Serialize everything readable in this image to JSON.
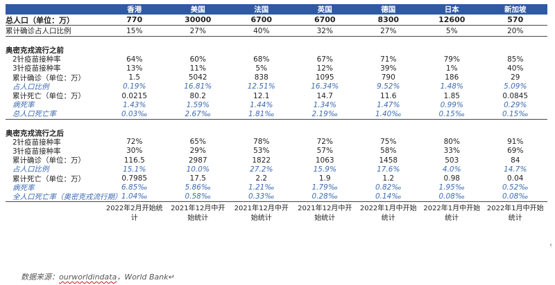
{
  "header": {
    "countries": [
      "香港",
      "美国",
      "法国",
      "英国",
      "德国",
      "日本",
      "新加坡"
    ]
  },
  "population": {
    "label": "总人口（单位：万）",
    "values": [
      "770",
      "30000",
      "6700",
      "6700",
      "8300",
      "12600",
      "570"
    ]
  },
  "cumulative_ratio": {
    "label": "累计确诊占人口比例",
    "values": [
      "15%",
      "27%",
      "40%",
      "32%",
      "27%",
      "5%",
      "20%"
    ]
  },
  "before": {
    "title": "奥密克戎流行之前",
    "rows": [
      {
        "label": "2针疫苗接种率",
        "style": "normal",
        "values": [
          "64%",
          "60%",
          "68%",
          "67%",
          "71%",
          "79%",
          "85%"
        ]
      },
      {
        "label": "3针疫苗接种率",
        "style": "normal",
        "values": [
          "13%",
          "11%",
          "5%",
          "12%",
          "39%",
          "1%",
          "40%"
        ]
      },
      {
        "label": "累计确诊（单位：万）",
        "style": "normal",
        "values": [
          "1.5",
          "5042",
          "838",
          "1095",
          "790",
          "186",
          "29"
        ]
      },
      {
        "label": "占人口比例",
        "style": "blue",
        "values": [
          "0.19%",
          "16.81%",
          "12.51%",
          "16.34%",
          "9.52%",
          "1.48%",
          "5.09%"
        ]
      },
      {
        "label": "累计死亡（单位：万）",
        "style": "normal",
        "values": [
          "0.0215",
          "80.2",
          "12.1",
          "14.7",
          "11.6",
          "1.85",
          "0.0845"
        ]
      },
      {
        "label": "病死率",
        "style": "blue",
        "values": [
          "1.43%",
          "1.59%",
          "1.44%",
          "1.34%",
          "1.47%",
          "0.99%",
          "0.29%"
        ]
      },
      {
        "label": "总人口死亡率",
        "style": "blue",
        "values": [
          "0.03‰",
          "2.67‰",
          "1.81‰",
          "2.19‰",
          "1.40‰",
          "0.15‰",
          "0.15‰"
        ]
      }
    ]
  },
  "after": {
    "title": "奥密克戎流行之后",
    "rows": [
      {
        "label": "2针疫苗接种率",
        "style": "normal",
        "values": [
          "72%",
          "65%",
          "78%",
          "72%",
          "75%",
          "80%",
          "91%"
        ]
      },
      {
        "label": "3针疫苗接种率",
        "style": "normal",
        "values": [
          "30%",
          "29%",
          "53%",
          "57%",
          "58%",
          "33%",
          "69%"
        ]
      },
      {
        "label": "累计确诊（单位：万）",
        "style": "normal",
        "values": [
          "116.5",
          "2987",
          "1822",
          "1063",
          "1458",
          "503",
          "84"
        ]
      },
      {
        "label": "占人口比例",
        "style": "blue",
        "values": [
          "15.1%",
          "10.0%",
          "27.2%",
          "15.9%",
          "17.6%",
          "4.0%",
          "14.7%"
        ]
      },
      {
        "label": "累计死亡（单位：万）",
        "style": "normal",
        "values": [
          "0.7985",
          "17.5",
          "2.2",
          "1.9",
          "1.2",
          "0.98",
          "0.04"
        ]
      },
      {
        "label": "病死率",
        "style": "blue",
        "values": [
          "6.85‰",
          "5.86‰",
          "1.21‰",
          "1.79‰",
          "0.82‰",
          "1.95‰",
          "0.52‰"
        ]
      },
      {
        "label": "全人口死亡率（奥密克戎流行期）",
        "style": "blue",
        "values": [
          "1.04‰",
          "0.58‰",
          "0.33‰",
          "0.28‰",
          "0.14‰",
          "0.08‰",
          "0.08‰"
        ]
      }
    ]
  },
  "notes": [
    "2022年2月开始统计",
    "2021年12月中开始统计",
    "2021年12月中开始统计",
    "2021年12月中开始统计",
    "2022年1月中开始统计",
    "2022年1月中开始统计",
    "2022年1月中开始统计"
  ],
  "source": {
    "prefix": "数据来源：",
    "link": "ourworldindata",
    "suffix": "，World Bank↵"
  },
  "colors": {
    "header_bg": "#2f5aa3",
    "accent_blue": "#3c6bb4"
  }
}
